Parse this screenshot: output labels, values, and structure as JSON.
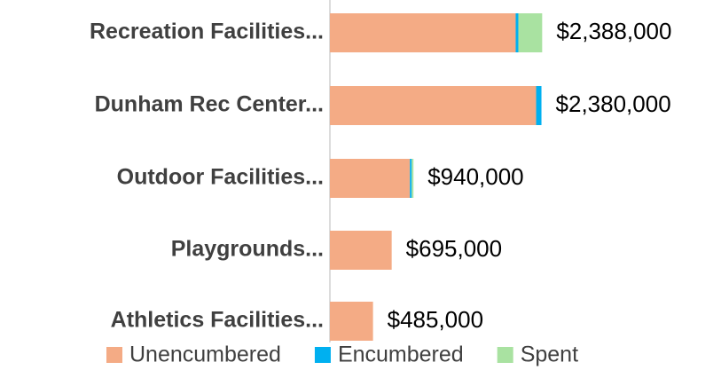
{
  "chart_data": {
    "type": "stacked_barh",
    "categories": [
      "Recreation Facilities...",
      "Dunham Rec Center...",
      "Outdoor Facilities...",
      "Playgrounds...",
      "Athletics Facilities..."
    ],
    "series": [
      {
        "name": "Unencumbered",
        "color": "#f4ab85",
        "values": [
          2090000,
          2320000,
          900000,
          695000,
          485000
        ]
      },
      {
        "name": "Encumbered",
        "color": "#00b0f0",
        "values": [
          30000,
          60000,
          20000,
          0,
          0
        ]
      },
      {
        "name": "Spent",
        "color": "#a9e2a1",
        "values": [
          268000,
          0,
          20000,
          0,
          0
        ]
      }
    ],
    "total_labels": [
      "$2,388,000",
      "$2,380,000",
      "$940,000",
      "$695,000",
      "$485,000"
    ],
    "xlim": [
      0,
      4400000
    ]
  }
}
